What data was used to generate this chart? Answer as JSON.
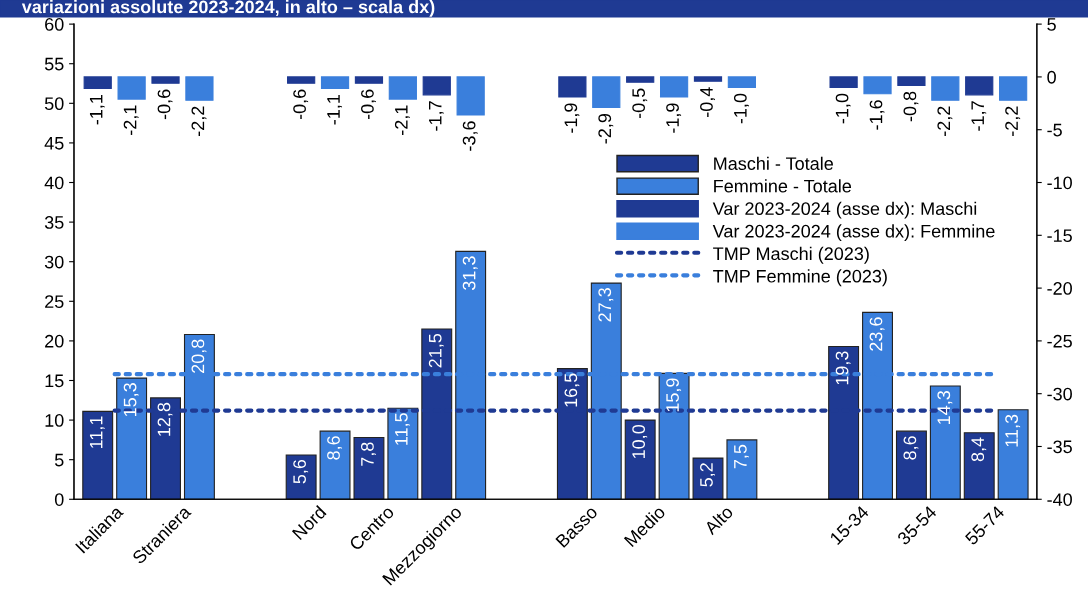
{
  "chart_data": {
    "type": "bar",
    "title": "variazioni assolute 2023-2024, in alto – scala dx)",
    "categories": [
      "Italiana",
      "Straniera",
      null,
      "Nord",
      "Centro",
      "Mezzogiorno",
      null,
      "Basso",
      "Medio",
      "Alto",
      null,
      "15-34",
      "35-54",
      "55-74"
    ],
    "series": [
      {
        "name": "Maschi - Totale",
        "color": "#1f3a93",
        "values": [
          11.1,
          12.8,
          null,
          5.6,
          7.8,
          21.5,
          null,
          16.5,
          10.0,
          5.2,
          null,
          19.3,
          8.6,
          8.4
        ],
        "value_labels": [
          "11,1",
          "12,8",
          null,
          "5,6",
          "7,8",
          "21,5",
          null,
          "16,5",
          "10,0",
          "5,2",
          null,
          "19,3",
          "8,6",
          "8,4"
        ]
      },
      {
        "name": "Femmine - Totale",
        "color": "#3a7fdc",
        "values": [
          15.3,
          20.8,
          null,
          8.6,
          11.5,
          31.3,
          null,
          27.3,
          15.9,
          7.5,
          null,
          23.6,
          14.3,
          11.3
        ],
        "value_labels": [
          "15,3",
          "20,8",
          null,
          "8,6",
          "11,5",
          "31,3",
          null,
          "27,3",
          "15,9",
          "7,5",
          null,
          "23,6",
          "14,3",
          "11,3"
        ]
      },
      {
        "name": "Var 2023-2024 (asse dx): Maschi",
        "color": "#1f3a93",
        "axis": "y2",
        "values": [
          -1.1,
          -0.6,
          null,
          -0.6,
          -0.6,
          -1.7,
          null,
          -1.9,
          -0.5,
          -0.4,
          null,
          -1.0,
          -0.8,
          -1.7
        ],
        "value_labels": [
          "-1,1",
          "-0,6",
          null,
          "-0,6",
          "-0,6",
          "-1,7",
          null,
          "-1,9",
          "-0,5",
          "-0,4",
          null,
          "-1,0",
          "-0,8",
          "-1,7"
        ]
      },
      {
        "name": "Var 2023-2024 (asse dx): Femmine",
        "color": "#3a7fdc",
        "axis": "y2",
        "values": [
          -2.1,
          -2.2,
          null,
          -1.1,
          -2.1,
          -3.6,
          null,
          -2.9,
          -1.9,
          -1.0,
          null,
          -1.6,
          -2.2,
          -2.2
        ],
        "value_labels": [
          "-2,1",
          "-2,2",
          null,
          "-1,1",
          "-2,1",
          "-3,6",
          null,
          "-2,9",
          "-1,9",
          "-1,0",
          null,
          "-1,6",
          "-2,2",
          "-2,2"
        ]
      },
      {
        "name": "TMP Maschi (2023)",
        "type": "line",
        "color": "#1f3a93",
        "line_style": "dotted",
        "values": [
          11.2,
          11.2,
          11.2,
          11.2,
          11.2,
          11.2,
          11.2,
          11.2,
          11.2,
          11.2,
          11.2,
          11.2,
          11.2,
          11.2
        ]
      },
      {
        "name": "TMP Femmine (2023)",
        "type": "line",
        "color": "#3a7fdc",
        "line_style": "dotted",
        "values": [
          15.8,
          15.8,
          15.8,
          15.8,
          15.8,
          15.8,
          15.8,
          15.8,
          15.8,
          15.8,
          15.8,
          15.8,
          15.8,
          15.8
        ]
      }
    ],
    "ylim": [
      0,
      60
    ],
    "yticks": [
      0,
      5,
      10,
      15,
      20,
      25,
      30,
      35,
      40,
      45,
      50,
      55,
      60
    ],
    "y2lim": [
      -40,
      5
    ],
    "y2ticks": [
      -40,
      -35,
      -30,
      -25,
      -20,
      -15,
      -10,
      -5,
      0,
      5
    ],
    "grid": false,
    "legend": "center right"
  }
}
